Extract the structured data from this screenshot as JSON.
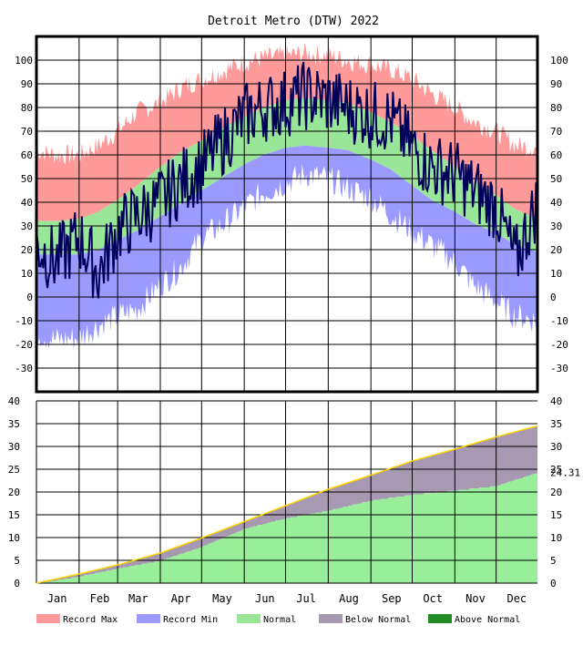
{
  "chart_data": [
    {
      "type": "area",
      "panel": "temperature",
      "title": "Detroit Metro (DTW) 2022",
      "xlabel": "",
      "ylabel": "",
      "ylim": [
        -40,
        110
      ],
      "yticks": [
        100,
        90,
        80,
        70,
        60,
        50,
        40,
        30,
        20,
        10,
        0,
        -10,
        -20,
        -30
      ],
      "ytick_labels": [
        "100",
        "90",
        "80",
        "70",
        "60",
        "50",
        "40",
        "30",
        "20",
        "10",
        "0",
        "-10",
        "-20",
        "-30"
      ],
      "months": [
        "Jan",
        "Feb",
        "Mar",
        "Apr",
        "May",
        "Jun",
        "Jul",
        "Aug",
        "Sep",
        "Oct",
        "Nov",
        "Dec"
      ],
      "grid": true,
      "x_days_of_year": [
        1,
        15,
        32,
        46,
        60,
        74,
        91,
        105,
        121,
        135,
        152,
        166,
        182,
        196,
        213,
        227,
        244,
        258,
        274,
        288,
        305,
        319,
        335,
        349,
        365
      ],
      "series": [
        {
          "name": "Record Max",
          "color": "#ff9a9a",
          "values": [
            62,
            60,
            60,
            64,
            70,
            78,
            82,
            88,
            92,
            95,
            99,
            101,
            102,
            103,
            102,
            100,
            98,
            96,
            92,
            86,
            80,
            74,
            70,
            64,
            63
          ]
        },
        {
          "name": "Normal High",
          "color": "#99e699",
          "values": [
            32,
            32,
            33,
            36,
            41,
            47,
            55,
            61,
            66,
            71,
            76,
            80,
            83,
            84,
            83,
            82,
            78,
            74,
            68,
            62,
            55,
            49,
            43,
            37,
            33
          ]
        },
        {
          "name": "Normal Low",
          "color": "#99e699",
          "values": [
            18,
            18,
            18,
            20,
            24,
            28,
            34,
            39,
            45,
            50,
            56,
            60,
            63,
            64,
            63,
            62,
            58,
            54,
            47,
            41,
            36,
            31,
            27,
            22,
            19
          ]
        },
        {
          "name": "Record Min",
          "color": "#9a9aff",
          "values": [
            -15,
            -18,
            -17,
            -12,
            -8,
            -5,
            5,
            12,
            25,
            30,
            38,
            44,
            48,
            52,
            50,
            46,
            42,
            35,
            28,
            22,
            15,
            5,
            -2,
            -8,
            -10
          ]
        },
        {
          "name": "Observed",
          "color": "#00005a",
          "values": [
            22,
            15,
            25,
            10,
            28,
            34,
            40,
            48,
            55,
            65,
            76,
            80,
            82,
            85,
            83,
            80,
            77,
            75,
            63,
            55,
            52,
            45,
            38,
            15,
            40
          ]
        }
      ],
      "legend": [
        "Record Max",
        "Record Min",
        "Normal",
        "Below Normal",
        "Above Normal"
      ],
      "legend_position": "bottom"
    },
    {
      "type": "area",
      "panel": "precipitation",
      "xlabel": "",
      "ylabel": "",
      "ylim": [
        0,
        40
      ],
      "yticks": [
        40,
        35,
        30,
        25,
        20,
        15,
        10,
        5,
        0
      ],
      "ytick_labels": [
        "40",
        "35",
        "30",
        "25",
        "20",
        "15",
        "10",
        "5",
        "0"
      ],
      "x_days_of_year": [
        1,
        32,
        60,
        91,
        121,
        152,
        182,
        213,
        244,
        274,
        305,
        335,
        365
      ],
      "series": [
        {
          "name": "Normal",
          "color": "#ffd700",
          "values": [
            0,
            2.0,
            4.0,
            6.6,
            9.9,
            13.5,
            17.0,
            20.6,
            23.7,
            26.8,
            29.4,
            32.1,
            34.5
          ]
        },
        {
          "name": "Observed",
          "color": "#99ee99",
          "values": [
            0,
            1.5,
            3.3,
            5.0,
            8.0,
            12.0,
            14.3,
            16.0,
            18.2,
            19.5,
            20.4,
            21.4,
            24.31
          ]
        }
      ],
      "end_label": "24.31",
      "end_value": 24.31
    }
  ],
  "legend_colors": {
    "Record Max": "#ff9a9a",
    "Record Min": "#9a9aff",
    "Normal": "#99e699",
    "Below Normal": "#a899b2",
    "Above Normal": "#228b22"
  }
}
